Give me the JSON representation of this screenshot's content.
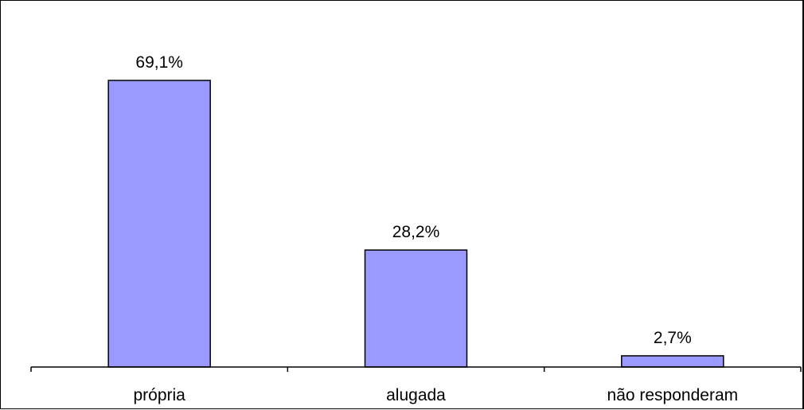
{
  "chart_data": {
    "type": "bar",
    "categories": [
      "própria",
      "alugada",
      "não responderam"
    ],
    "values": [
      69.1,
      28.2,
      2.7
    ],
    "data_labels": [
      "69,1%",
      "28,2%",
      "2,7%"
    ],
    "title": "",
    "xlabel": "",
    "ylabel": "",
    "ylim": [
      0,
      69.1
    ],
    "grid": false,
    "legend": "none",
    "bar_color": "#9999ff",
    "bar_border_color": "#000000"
  }
}
